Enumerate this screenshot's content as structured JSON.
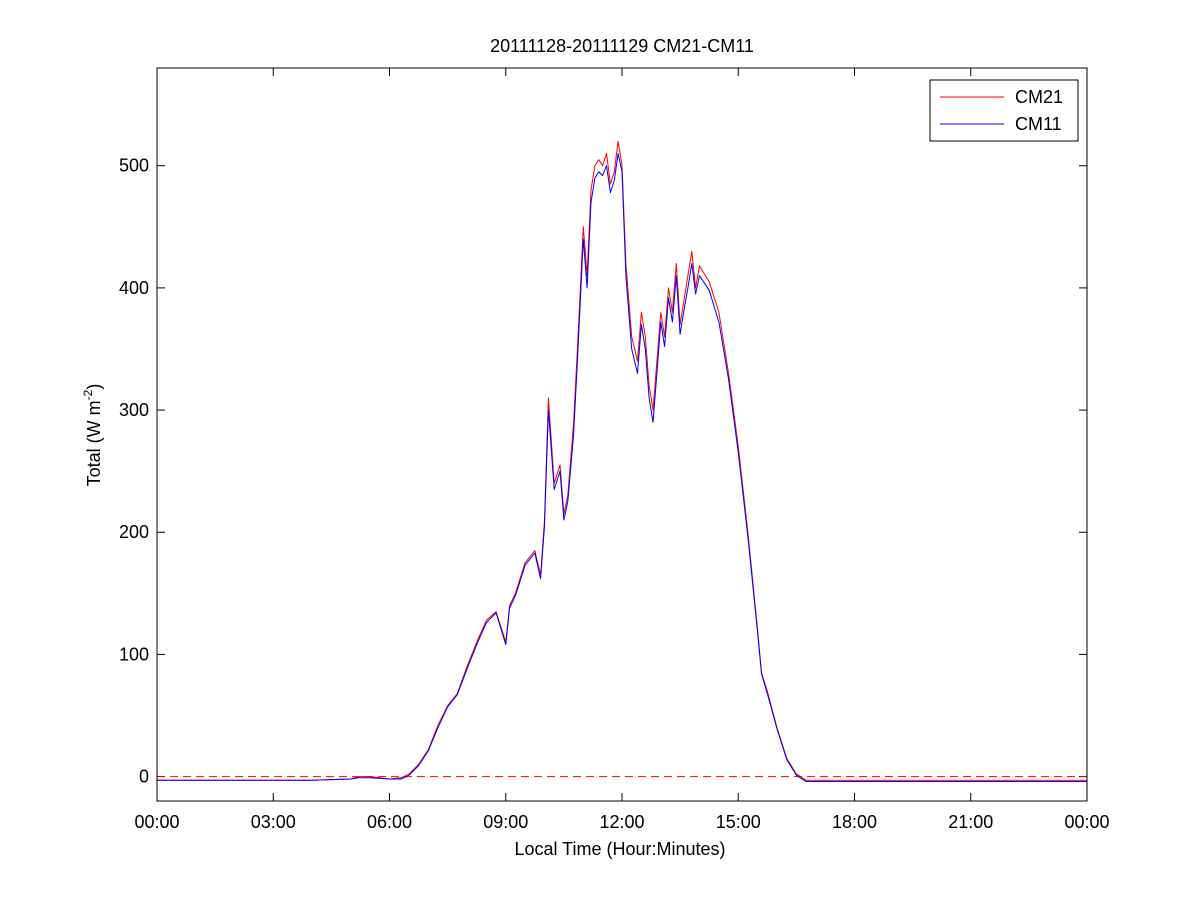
{
  "chart_data": {
    "type": "line",
    "title": "20111128-20111129 CM21-CM11",
    "xlabel": "Local Time (Hour:Minutes)",
    "ylabel": {
      "main": "Total (W m",
      "superscript": "-2",
      "suffix": ")"
    },
    "x_unit": "hours",
    "xlim": [
      0,
      24
    ],
    "ylim": [
      -20,
      580
    ],
    "x_ticks": [
      {
        "value": 0,
        "label": "00:00"
      },
      {
        "value": 3,
        "label": "03:00"
      },
      {
        "value": 6,
        "label": "06:00"
      },
      {
        "value": 9,
        "label": "09:00"
      },
      {
        "value": 12,
        "label": "12:00"
      },
      {
        "value": 15,
        "label": "15:00"
      },
      {
        "value": 18,
        "label": "18:00"
      },
      {
        "value": 21,
        "label": "21:00"
      },
      {
        "value": 24,
        "label": "00:00"
      }
    ],
    "y_ticks": [
      {
        "value": 0,
        "label": "0"
      },
      {
        "value": 100,
        "label": "100"
      },
      {
        "value": 200,
        "label": "200"
      },
      {
        "value": 300,
        "label": "300"
      },
      {
        "value": 400,
        "label": "400"
      },
      {
        "value": 500,
        "label": "500"
      }
    ],
    "grid": false,
    "legend_position": "top-right",
    "reference_line": {
      "y": 0,
      "color": "#ff0000",
      "style": "dashed"
    },
    "series": [
      {
        "name": "CM21",
        "color": "#ff0000",
        "x": [
          0,
          1,
          2,
          3,
          4,
          5,
          5.2,
          5.5,
          6,
          6.3,
          6.5,
          6.75,
          7,
          7.25,
          7.5,
          7.75,
          8,
          8.25,
          8.5,
          8.75,
          9,
          9.1,
          9.25,
          9.5,
          9.75,
          9.9,
          10,
          10.1,
          10.25,
          10.4,
          10.5,
          10.6,
          10.75,
          10.85,
          11,
          11.1,
          11.2,
          11.3,
          11.4,
          11.5,
          11.6,
          11.7,
          11.8,
          11.9,
          12,
          12.1,
          12.15,
          12.25,
          12.4,
          12.5,
          12.6,
          12.7,
          12.8,
          12.9,
          13,
          13.1,
          13.2,
          13.3,
          13.4,
          13.5,
          13.6,
          13.7,
          13.8,
          13.9,
          14,
          14.25,
          14.5,
          14.75,
          15,
          15.25,
          15.5,
          15.6,
          15.75,
          16,
          16.25,
          16.5,
          16.75,
          17,
          17.25,
          17.5,
          18,
          19,
          20,
          21,
          22,
          23,
          24
        ],
        "values": [
          -3,
          -3,
          -3,
          -3,
          -3,
          -2,
          0,
          0,
          -2,
          -1,
          2,
          10,
          22,
          42,
          58,
          68,
          90,
          110,
          128,
          135,
          110,
          140,
          150,
          175,
          185,
          165,
          210,
          310,
          240,
          255,
          215,
          230,
          290,
          350,
          450,
          410,
          480,
          500,
          505,
          500,
          510,
          485,
          495,
          520,
          500,
          420,
          400,
          360,
          340,
          380,
          360,
          320,
          300,
          340,
          380,
          360,
          400,
          380,
          420,
          370,
          390,
          410,
          430,
          400,
          418,
          405,
          380,
          330,
          270,
          200,
          120,
          85,
          70,
          40,
          15,
          2,
          -3,
          -3,
          -3,
          -3,
          -3,
          -3,
          -3,
          -3,
          -3,
          -3,
          -3
        ]
      },
      {
        "name": "CM11",
        "color": "#0000ff",
        "x": [
          0,
          1,
          2,
          3,
          4,
          5,
          5.2,
          5.5,
          6,
          6.3,
          6.5,
          6.75,
          7,
          7.25,
          7.5,
          7.75,
          8,
          8.25,
          8.5,
          8.75,
          9,
          9.1,
          9.25,
          9.5,
          9.75,
          9.9,
          10,
          10.1,
          10.25,
          10.4,
          10.5,
          10.6,
          10.75,
          10.85,
          11,
          11.1,
          11.2,
          11.3,
          11.4,
          11.5,
          11.6,
          11.7,
          11.8,
          11.9,
          12,
          12.1,
          12.15,
          12.25,
          12.4,
          12.5,
          12.6,
          12.7,
          12.8,
          12.9,
          13,
          13.1,
          13.2,
          13.3,
          13.4,
          13.5,
          13.6,
          13.7,
          13.8,
          13.9,
          14,
          14.25,
          14.5,
          14.75,
          15,
          15.25,
          15.5,
          15.6,
          15.75,
          16,
          16.25,
          16.5,
          16.75,
          17,
          17.25,
          17.5,
          18,
          19,
          20,
          21,
          22,
          23,
          24
        ],
        "values": [
          -3,
          -3,
          -3,
          -3,
          -3,
          -2,
          -1,
          -1,
          -2,
          -2,
          1,
          9,
          21,
          40,
          57,
          67,
          88,
          108,
          126,
          134,
          108,
          138,
          148,
          173,
          183,
          162,
          205,
          300,
          235,
          250,
          210,
          225,
          280,
          340,
          440,
          400,
          470,
          490,
          495,
          492,
          500,
          478,
          488,
          510,
          495,
          410,
          390,
          350,
          330,
          370,
          350,
          310,
          290,
          330,
          372,
          352,
          392,
          372,
          410,
          362,
          382,
          400,
          420,
          395,
          410,
          398,
          372,
          325,
          265,
          196,
          118,
          84,
          68,
          39,
          14,
          1,
          -4,
          -4,
          -4,
          -4,
          -4,
          -4,
          -4,
          -4,
          -4,
          -4,
          -4
        ]
      }
    ]
  }
}
